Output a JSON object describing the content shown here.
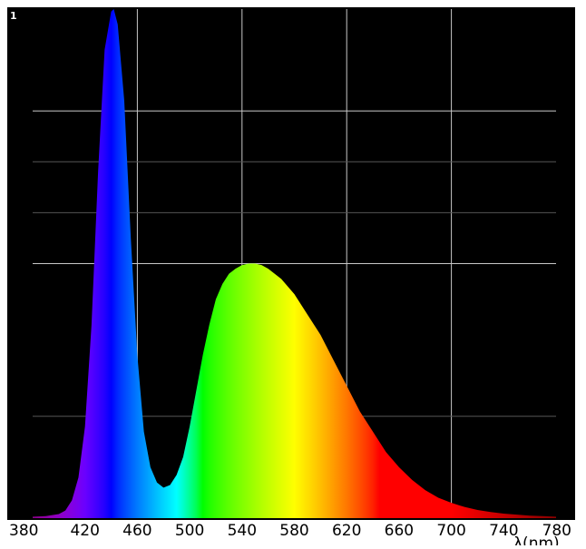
{
  "chart_data": {
    "type": "area",
    "title": "",
    "ylabel": "",
    "xlabel": "λ(nm)",
    "x_ticks": [
      380,
      420,
      460,
      500,
      540,
      580,
      620,
      660,
      700,
      740,
      780
    ],
    "x_tick_labels": [
      "380",
      "420",
      "460",
      "500",
      "540",
      "580",
      "620",
      "660",
      "700",
      "740",
      "780"
    ],
    "y_tick_label": "1",
    "xlim": [
      380,
      780
    ],
    "ylim": [
      0,
      1
    ],
    "grid": true,
    "fill": "wavelength-gradient",
    "series": [
      {
        "x": [
          380,
          390,
          400,
          405,
          410,
          415,
          420,
          425,
          430,
          435,
          440,
          442,
          445,
          450,
          455,
          460,
          465,
          470,
          475,
          480,
          485,
          490,
          495,
          500,
          505,
          510,
          515,
          520,
          525,
          530,
          535,
          540,
          545,
          550,
          555,
          560,
          570,
          580,
          590,
          600,
          610,
          620,
          630,
          640,
          650,
          660,
          670,
          680,
          690,
          700,
          710,
          720,
          730,
          740,
          750,
          760,
          770,
          780
        ],
        "y": [
          0.003,
          0.004,
          0.008,
          0.015,
          0.035,
          0.08,
          0.18,
          0.38,
          0.68,
          0.92,
          0.995,
          1.0,
          0.97,
          0.82,
          0.55,
          0.32,
          0.17,
          0.1,
          0.07,
          0.06,
          0.065,
          0.085,
          0.12,
          0.18,
          0.25,
          0.32,
          0.38,
          0.43,
          0.46,
          0.48,
          0.49,
          0.497,
          0.5,
          0.5,
          0.497,
          0.49,
          0.47,
          0.44,
          0.4,
          0.36,
          0.31,
          0.26,
          0.21,
          0.17,
          0.13,
          0.1,
          0.075,
          0.055,
          0.04,
          0.03,
          0.022,
          0.016,
          0.012,
          0.009,
          0.007,
          0.005,
          0.004,
          0.003
        ]
      }
    ]
  }
}
